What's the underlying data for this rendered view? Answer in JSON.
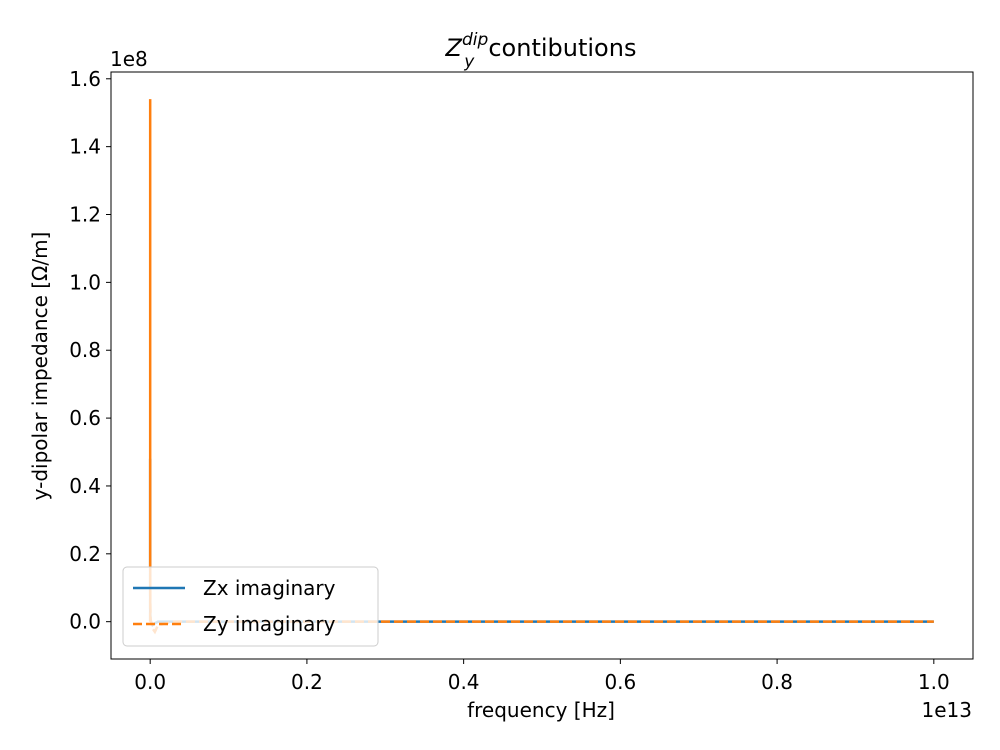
{
  "chart_data": {
    "type": "line",
    "title_symbol": "Z",
    "title_subscript": "y",
    "title_superscript": "dip",
    "title_text": "contibutions",
    "xlabel": "frequency [Hz]",
    "ylabel": "y-dipolar impedance [Ω/m]",
    "x_offset_text": "1e13",
    "y_offset_text": "1e8",
    "x_multiplier": 10000000000000.0,
    "y_multiplier": 100000000.0,
    "xlim": [
      -0.05,
      1.05
    ],
    "ylim": [
      -0.11,
      1.62
    ],
    "xticks": [
      0.0,
      0.2,
      0.4,
      0.6,
      0.8,
      1.0
    ],
    "xtick_labels": [
      "0.0",
      "0.2",
      "0.4",
      "0.6",
      "0.8",
      "1.0"
    ],
    "yticks": [
      0.0,
      0.2,
      0.4,
      0.6,
      0.8,
      1.0,
      1.2,
      1.4,
      1.6
    ],
    "ytick_labels": [
      "0.0",
      "0.2",
      "0.4",
      "0.6",
      "0.8",
      "1.0",
      "1.2",
      "1.4",
      "1.6"
    ],
    "legend_position": "lower-left",
    "series": [
      {
        "name": "Zx imaginary",
        "color": "#1f77b4",
        "style": "solid",
        "x": [
          0.0,
          0.0,
          0.0,
          0.0002,
          0.0005,
          0.001,
          0.003,
          0.006,
          0.01,
          0.03,
          0.1,
          0.3,
          0.6,
          1.0
        ],
        "y": [
          0.0,
          0.48,
          0.1,
          0.02,
          0.005,
          0.0,
          -0.01,
          -0.005,
          0.0,
          0.0,
          0.0,
          0.0,
          0.0,
          0.0
        ]
      },
      {
        "name": "Zy imaginary",
        "color": "#ff7f0e",
        "style": "dashed",
        "x": [
          0.0,
          0.0,
          0.0,
          0.0002,
          0.0005,
          0.001,
          0.003,
          0.006,
          0.01,
          0.03,
          0.1,
          0.3,
          0.6,
          1.0
        ],
        "y": [
          0.0,
          1.54,
          0.2,
          0.05,
          0.01,
          0.0,
          -0.02,
          -0.03,
          -0.01,
          0.0,
          0.0,
          0.0,
          0.0,
          0.0
        ]
      }
    ]
  }
}
